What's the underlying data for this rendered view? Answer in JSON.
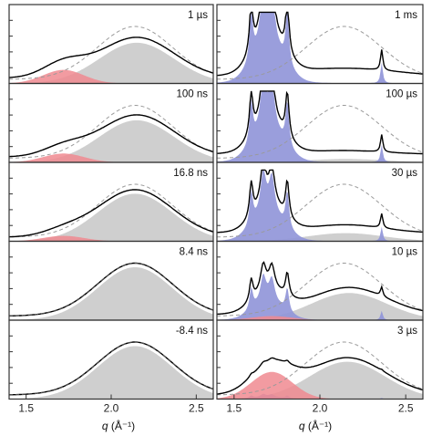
{
  "chart_data": {
    "type": "area",
    "title": "",
    "x_axis": {
      "label": "q (Å⁻¹)",
      "label_parts": {
        "symbol": "q",
        "unit": "(Å⁻¹)"
      },
      "ticks": [
        "1.5",
        "2.0",
        "2.5"
      ],
      "range": [
        1.4,
        2.6
      ]
    },
    "y_axis": {
      "label": "",
      "ticks_labeled": false
    },
    "colors": {
      "liquid": "#cfcfcf",
      "low_q_liquid": "#f08a90",
      "crystalline": "#8f94d8",
      "line": "#000000",
      "reference": "#9a9a9a",
      "frame": "#333333"
    },
    "legend": "none",
    "grid": false,
    "panels": [
      {
        "column": "left",
        "row": 0,
        "time_label": "1 µs",
        "peak_q": 2.15,
        "liquid_amp": 0.6,
        "low_q_amp": 0.2,
        "low_q_center": 1.72,
        "crystalline_amp": 0,
        "baseline": 0.08
      },
      {
        "column": "left",
        "row": 1,
        "time_label": "100 ns",
        "peak_q": 2.15,
        "liquid_amp": 0.62,
        "low_q_amp": 0.13,
        "low_q_center": 1.72,
        "crystalline_amp": 0,
        "baseline": 0.08
      },
      {
        "column": "left",
        "row": 2,
        "time_label": "16.8 ns",
        "peak_q": 2.14,
        "liquid_amp": 0.7,
        "low_q_amp": 0.08,
        "low_q_center": 1.72,
        "crystalline_amp": 0,
        "baseline": 0.06
      },
      {
        "column": "left",
        "row": 3,
        "time_label": "8.4 ns",
        "peak_q": 2.14,
        "liquid_amp": 0.78,
        "low_q_amp": 0,
        "low_q_center": 1.72,
        "crystalline_amp": 0,
        "baseline": 0.06
      },
      {
        "column": "left",
        "row": 4,
        "time_label": "-8.4 ns",
        "peak_q": 2.14,
        "liquid_amp": 0.78,
        "low_q_amp": 0,
        "low_q_center": 1.72,
        "crystalline_amp": 0,
        "baseline": 0.06
      },
      {
        "column": "right",
        "row": 0,
        "time_label": "1 ms",
        "peak_q": 2.15,
        "liquid_amp": 0,
        "low_q_amp": 0,
        "low_q_center": 1.72,
        "crystalline_amp": 1.0,
        "baseline": 0.1
      },
      {
        "column": "right",
        "row": 1,
        "time_label": "100 µs",
        "peak_q": 2.15,
        "liquid_amp": 0.05,
        "low_q_amp": 0,
        "low_q_center": 1.72,
        "crystalline_amp": 0.85,
        "baseline": 0.12
      },
      {
        "column": "right",
        "row": 2,
        "time_label": "30 µs",
        "peak_q": 2.15,
        "liquid_amp": 0.12,
        "low_q_amp": 0,
        "low_q_center": 1.72,
        "crystalline_amp": 0.7,
        "baseline": 0.12
      },
      {
        "column": "right",
        "row": 3,
        "time_label": "10 µs",
        "peak_q": 2.17,
        "liquid_amp": 0.4,
        "low_q_amp": 0.06,
        "low_q_center": 1.72,
        "crystalline_amp": 0.45,
        "baseline": 0.08
      },
      {
        "column": "right",
        "row": 4,
        "time_label": "3 µs",
        "peak_q": 2.16,
        "liquid_amp": 0.55,
        "low_q_amp": 0.4,
        "low_q_center": 1.72,
        "crystalline_amp": 0.05,
        "baseline": 0.06
      }
    ],
    "crystalline_peaks_q": [
      1.6,
      1.67,
      1.72,
      1.81,
      2.36
    ]
  }
}
